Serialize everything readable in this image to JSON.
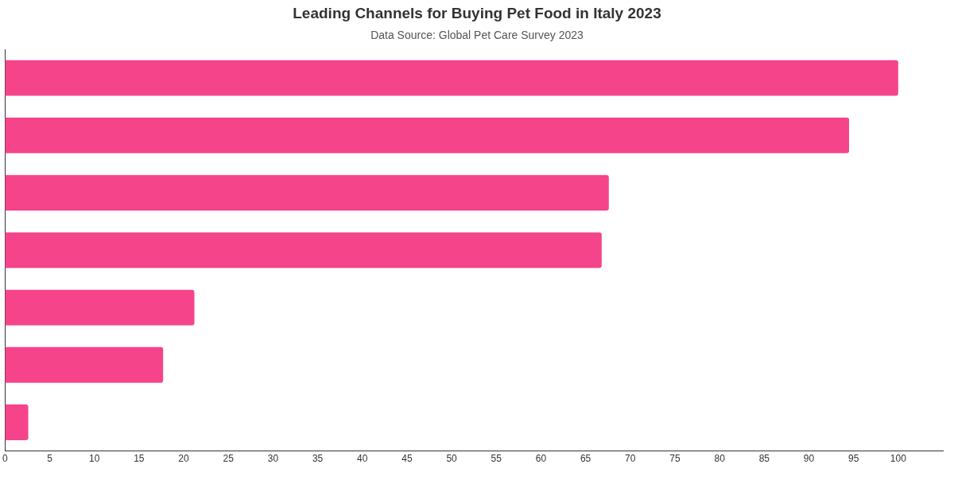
{
  "chart_data": {
    "type": "bar",
    "orientation": "horizontal",
    "title": "Leading Channels for Buying Pet Food in Italy 2023",
    "subtitle": "Data Source: Global Pet Care Survey 2023",
    "categories": [
      null,
      null,
      null,
      null,
      null,
      null,
      null
    ],
    "values": [
      100,
      94.5,
      67.6,
      66.8,
      21.2,
      17.7,
      2.6
    ],
    "color": "#f5448a",
    "xlim": [
      0,
      105
    ],
    "xticks": [
      0,
      5,
      10,
      15,
      20,
      25,
      30,
      35,
      40,
      45,
      50,
      55,
      60,
      65,
      70,
      75,
      80,
      85,
      90,
      95,
      100
    ],
    "grid": false,
    "legend": false
  }
}
